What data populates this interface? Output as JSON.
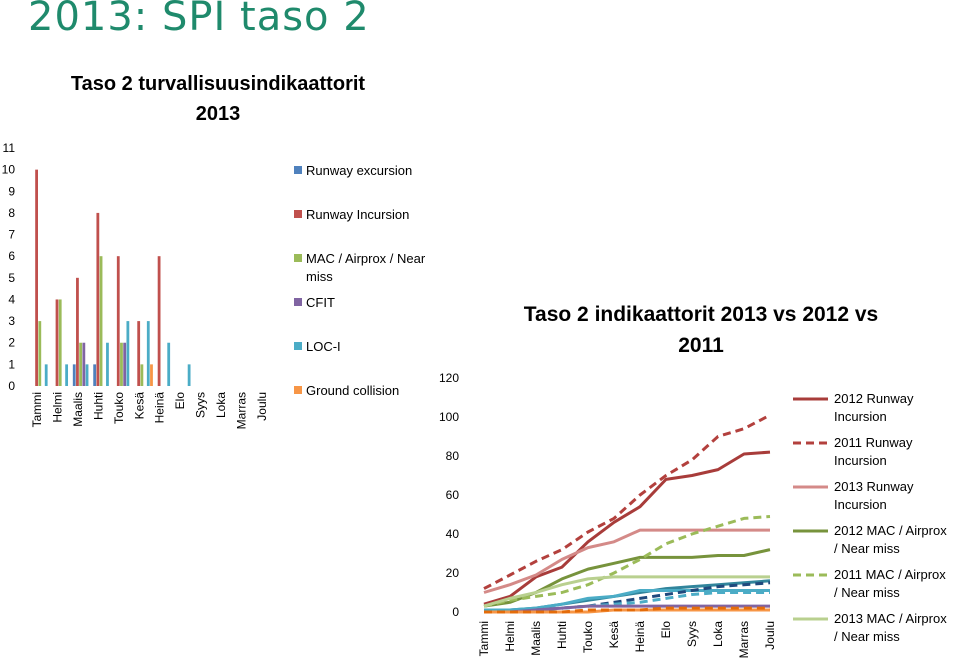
{
  "slide": {
    "title": "2013: SPI taso 2"
  },
  "chart_data": [
    {
      "type": "bar",
      "title": "Taso 2 turvallisuusindikaattorit",
      "subtitle": "2013",
      "categories": [
        "Tammi",
        "Helmi",
        "Maalis",
        "Huhti",
        "Touko",
        "Kesä",
        "Heinä",
        "Elo",
        "Syys",
        "Loka",
        "Marras",
        "Joulu"
      ],
      "ylim": [
        0,
        11
      ],
      "yticks": [
        "0",
        "1",
        "2",
        "3",
        "4",
        "5",
        "6",
        "7",
        "8",
        "9",
        "10",
        "11"
      ],
      "legend_position": "right",
      "series": [
        {
          "name": "Runway excursion",
          "color": "#4f81bd",
          "values": [
            0,
            0,
            1,
            1,
            0,
            0,
            0,
            0,
            0,
            0,
            0,
            0
          ]
        },
        {
          "name": "Runway Incursion",
          "color": "#c0504d",
          "values": [
            10,
            4,
            5,
            8,
            6,
            3,
            6,
            0,
            0,
            0,
            0,
            0
          ]
        },
        {
          "name": "MAC / Airprox / Near miss",
          "color": "#9bbb59",
          "values": [
            3,
            4,
            2,
            6,
            2,
            1,
            0,
            0,
            0,
            0,
            0,
            0
          ]
        },
        {
          "name": "CFIT",
          "color": "#8064a2",
          "values": [
            0,
            0,
            2,
            0,
            2,
            0,
            0,
            0,
            0,
            0,
            0,
            0
          ]
        },
        {
          "name": "LOC-I",
          "color": "#4bacc6",
          "values": [
            1,
            1,
            1,
            2,
            3,
            3,
            2,
            1,
            0,
            0,
            0,
            0
          ]
        },
        {
          "name": "Ground collision",
          "color": "#f79646",
          "values": [
            0,
            0,
            0,
            0,
            0,
            1,
            0,
            0,
            0,
            0,
            0,
            0
          ]
        }
      ]
    },
    {
      "type": "line",
      "title": "Taso 2 indikaattorit 2013 vs 2012 vs",
      "subtitle": "2011",
      "categories": [
        "Tammi",
        "Helmi",
        "Maalis",
        "Huhti",
        "Touko",
        "Kesä",
        "Heinä",
        "Elo",
        "Syys",
        "Loka",
        "Marras",
        "Joulu"
      ],
      "ylim": [
        0,
        120
      ],
      "yticks": [
        "0",
        "20",
        "40",
        "60",
        "80",
        "100",
        "120"
      ],
      "legend_position": "right",
      "series": [
        {
          "name": "2012 Runway Incursion",
          "color": "#a83c3a",
          "dash": false,
          "legend": true,
          "values": [
            4,
            8,
            18,
            23,
            36,
            46,
            54,
            68,
            70,
            73,
            81,
            82
          ]
        },
        {
          "name": "2011 Runway Incursion",
          "color": "#b3403d",
          "dash": true,
          "legend": true,
          "values": [
            12,
            19,
            26,
            32,
            41,
            48,
            60,
            70,
            78,
            90,
            94,
            101
          ]
        },
        {
          "name": "2013 Runway Incursion",
          "color": "#d48a88",
          "dash": false,
          "legend": true,
          "values": [
            10,
            14,
            19,
            27,
            33,
            36,
            42,
            42,
            42,
            42,
            42,
            42
          ]
        },
        {
          "name": "2012 MAC / Airprox / Near miss",
          "color": "#77933c",
          "dash": false,
          "legend": true,
          "values": [
            3,
            5,
            10,
            17,
            22,
            25,
            28,
            28,
            28,
            29,
            29,
            32
          ]
        },
        {
          "name": "2011 MAC / Airprox / Near miss",
          "color": "#9bbb59",
          "dash": true,
          "legend": true,
          "values": [
            3,
            6,
            8,
            10,
            14,
            20,
            27,
            35,
            40,
            44,
            48,
            49
          ]
        },
        {
          "name": "2013 MAC / Airprox / Near miss",
          "color": "#b9d08f",
          "dash": false,
          "legend": true,
          "values": [
            3,
            7,
            10,
            14,
            17,
            18,
            18,
            18,
            18,
            18,
            18,
            18
          ]
        },
        {
          "name": "",
          "color": "#31859c",
          "dash": false,
          "legend": false,
          "values": [
            1,
            1,
            2,
            4,
            6,
            8,
            10,
            12,
            13,
            14,
            15,
            16
          ]
        },
        {
          "name": "",
          "color": "#4bacc6",
          "dash": false,
          "legend": false,
          "values": [
            1,
            1,
            2,
            4,
            7,
            8,
            11,
            11,
            11,
            11,
            11,
            11
          ]
        },
        {
          "name": "",
          "color": "#1f497d",
          "dash": true,
          "legend": false,
          "values": [
            1,
            1,
            1,
            2,
            3,
            5,
            7,
            9,
            11,
            13,
            14,
            15
          ]
        },
        {
          "name": "",
          "color": "#4bacc6",
          "dash": true,
          "legend": false,
          "values": [
            1,
            1,
            1,
            2,
            3,
            4,
            5,
            7,
            9,
            10,
            10,
            10
          ]
        },
        {
          "name": "",
          "color": "#8064a2",
          "dash": false,
          "legend": false,
          "values": [
            0,
            0,
            1,
            2,
            3,
            3,
            3,
            3,
            3,
            3,
            3,
            3
          ]
        },
        {
          "name": "",
          "color": "#f79646",
          "dash": false,
          "legend": false,
          "values": [
            0,
            0,
            0,
            0,
            0,
            1,
            1,
            1,
            1,
            1,
            1,
            1
          ]
        },
        {
          "name": "",
          "color": "#e46c0a",
          "dash": true,
          "legend": false,
          "values": [
            0,
            0,
            0,
            0,
            1,
            1,
            1,
            2,
            2,
            2,
            2,
            2
          ]
        }
      ]
    }
  ]
}
